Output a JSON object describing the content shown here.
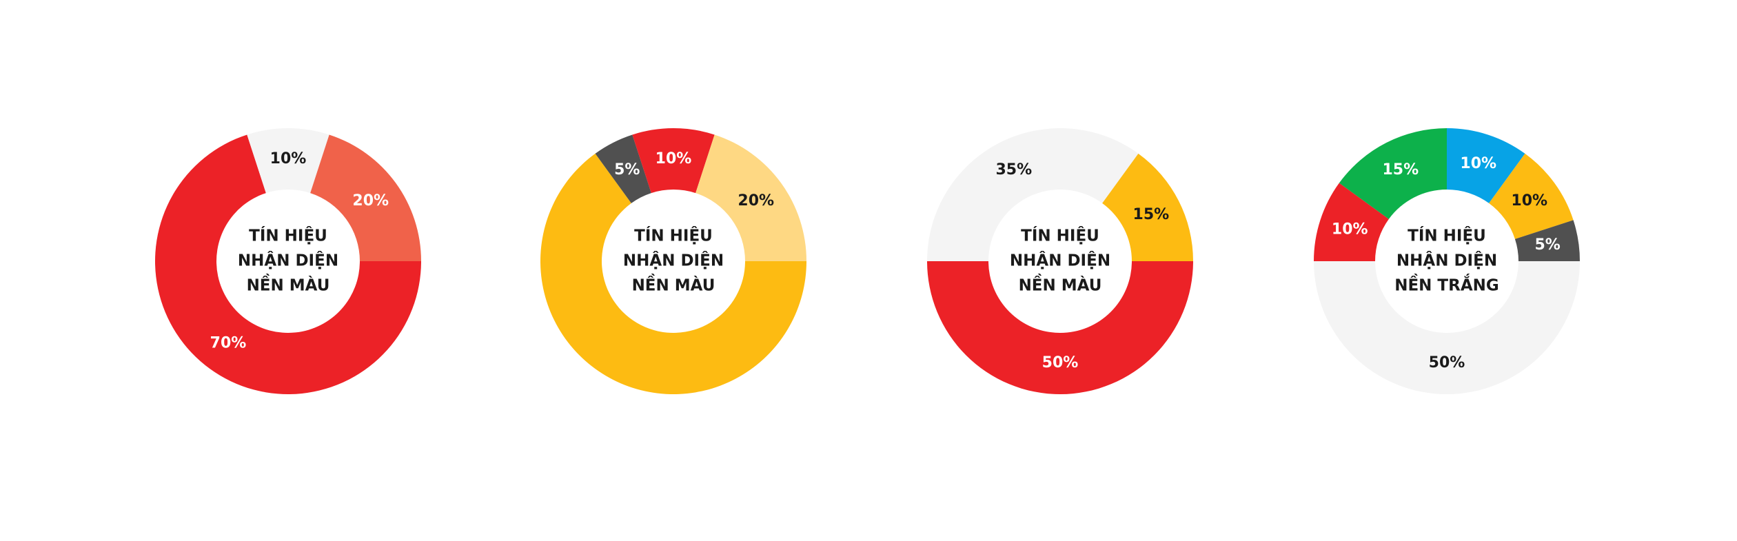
{
  "chart_data": [
    {
      "type": "pie",
      "center_text": [
        "TÍN HIỆU",
        "NHẬN DIỆN",
        "NỀN MÀU"
      ],
      "values": [
        70,
        10,
        20
      ],
      "value_labels": [
        "70%",
        "10%",
        "20%"
      ],
      "colors": [
        "#ec2227",
        "#f4f4f4",
        "#f0624a"
      ]
    },
    {
      "type": "pie",
      "center_text": [
        "TÍN HIỆU",
        "NHẬN DIỆN",
        "NỀN MÀU"
      ],
      "values": [
        65,
        5,
        10,
        20
      ],
      "value_labels": [
        null,
        "5%",
        "10%",
        "20%"
      ],
      "colors": [
        "#fdbb12",
        "#505050",
        "#ec2227",
        "#fed883"
      ]
    },
    {
      "type": "pie",
      "center_text": [
        "TÍN HIỆU",
        "NHẬN DIỆN",
        "NỀN MÀU"
      ],
      "values": [
        50,
        35,
        15
      ],
      "value_labels": [
        "50%",
        "35%",
        "15%"
      ],
      "colors": [
        "#ec2227",
        "#f4f4f4",
        "#fdbb12"
      ]
    },
    {
      "type": "pie",
      "center_text": [
        "TÍN HIỆU",
        "NHẬN DIỆN",
        "NỀN TRẮNG"
      ],
      "values": [
        50,
        10,
        15,
        10,
        10,
        5
      ],
      "value_labels": [
        "50%",
        "10%",
        "15%",
        "10%",
        "10%",
        "5%"
      ],
      "colors": [
        "#f4f4f4",
        "#ec2227",
        "#0db14b",
        "#07a3e6",
        "#fdbb12",
        "#505050"
      ]
    }
  ]
}
